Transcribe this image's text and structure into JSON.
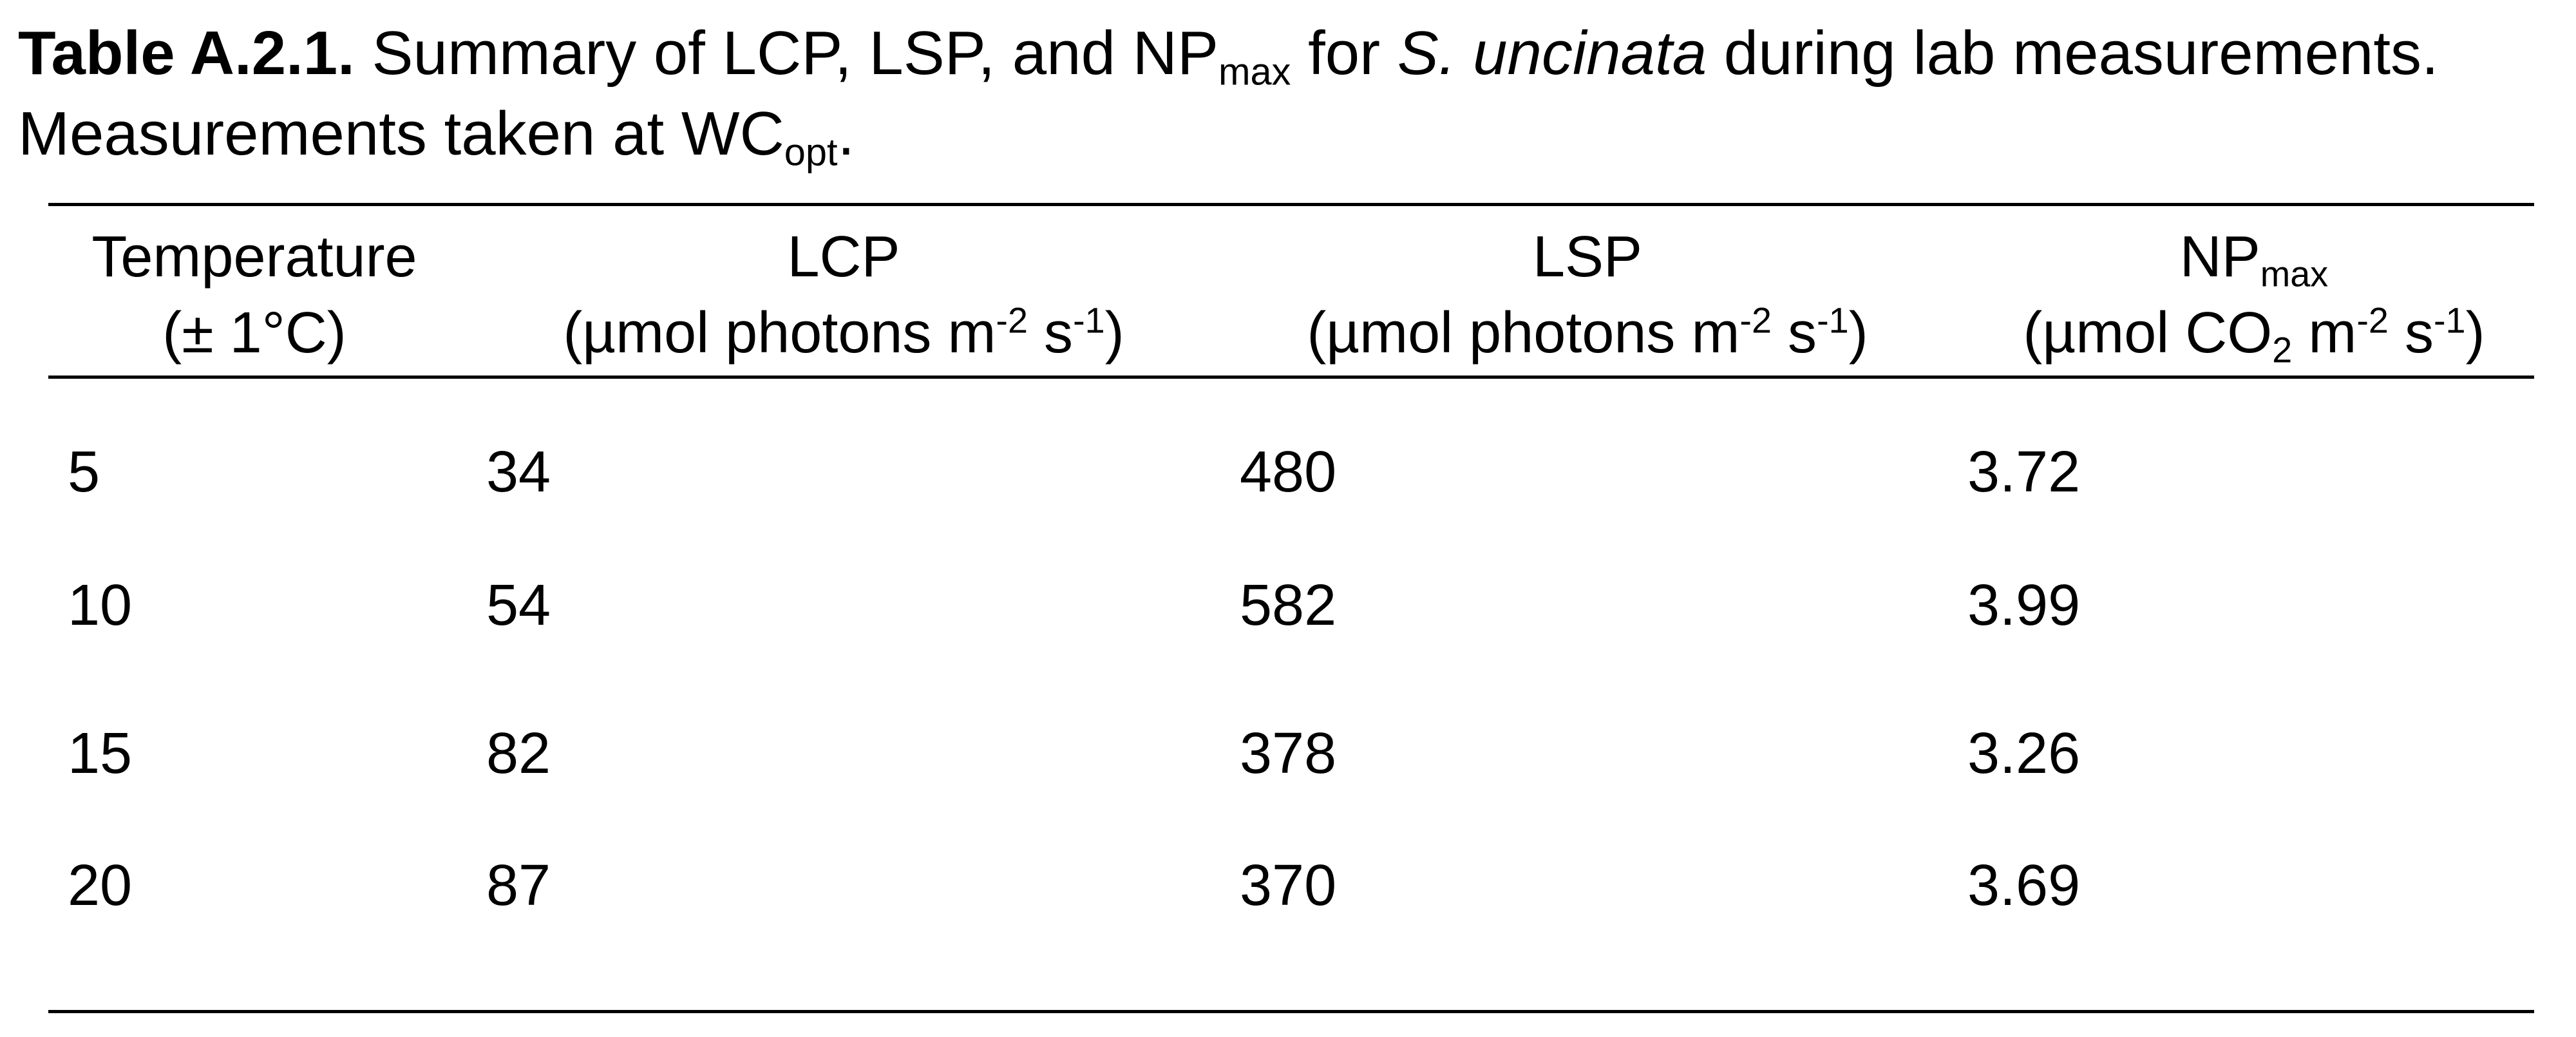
{
  "caption": {
    "label": "Table A.2.1.",
    "line1_a": " Summary of LCP, LSP, and NP",
    "line1_sub": "max",
    "line1_b": " for ",
    "species": "S. uncinata",
    "line1_c": " during lab measurements.",
    "line2_a": "Measurements taken at WC",
    "line2_sub": "opt",
    "line2_b": "."
  },
  "headers": {
    "temperature": {
      "line1": "Temperature",
      "line2": "(± 1°C)"
    },
    "lcp": {
      "line1": "LCP",
      "line2_a": "(µmol photons m",
      "sup1": "-2",
      "mid": " s",
      "sup2": "-1",
      "close": ")"
    },
    "lsp": {
      "line1": "LSP",
      "line2_a": "(µmol photons m",
      "sup1": "-2",
      "mid": " s",
      "sup2": "-1",
      "close": ")"
    },
    "npmax": {
      "line1_a": "NP",
      "line1_sub": "max",
      "line2_a": "(µmol CO",
      "sub": "2",
      "m": " m",
      "sup1": "-2",
      "mid": " s",
      "sup2": "-1",
      "close": ")"
    }
  },
  "rows": [
    {
      "temperature": "5",
      "lcp": "34",
      "lsp": "480",
      "npmax": "3.72"
    },
    {
      "temperature": "10",
      "lcp": "54",
      "lsp": "582",
      "npmax": "3.99"
    },
    {
      "temperature": "15",
      "lcp": "82",
      "lsp": "378",
      "npmax": "3.26"
    },
    {
      "temperature": "20",
      "lcp": "87",
      "lsp": "370",
      "npmax": "3.69"
    }
  ]
}
